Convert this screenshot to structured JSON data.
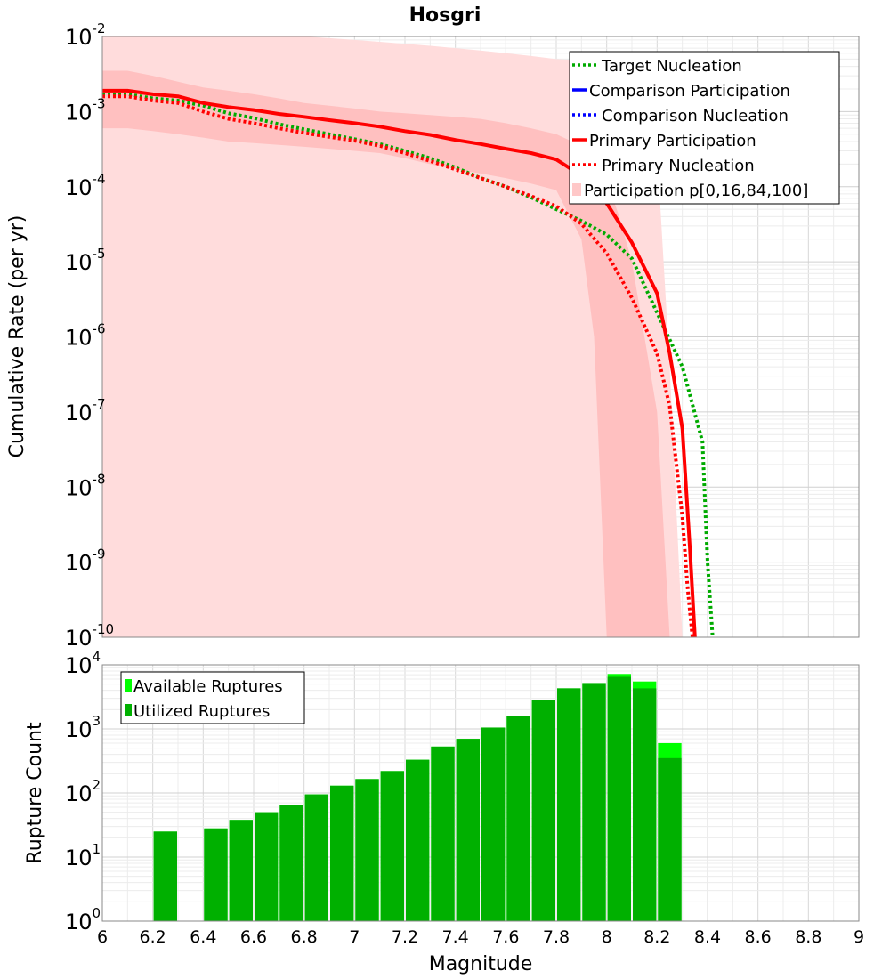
{
  "chart_data": [
    {
      "type": "line",
      "title": "Hosgri",
      "ylabel": "Cumulative Rate (per yr)",
      "xlim": [
        6,
        9
      ],
      "ylim": [
        1e-10,
        0.01
      ],
      "yscale": "log",
      "grid": true,
      "legend_placement": "top-right",
      "y_tick_labels": [
        {
          "base": "10",
          "exp": "-2",
          "value": 0.01
        },
        {
          "base": "10",
          "exp": "-3",
          "value": 0.001
        },
        {
          "base": "10",
          "exp": "-4",
          "value": 0.0001
        },
        {
          "base": "10",
          "exp": "-5",
          "value": 1e-05
        },
        {
          "base": "10",
          "exp": "-6",
          "value": 1e-06
        },
        {
          "base": "10",
          "exp": "-7",
          "value": 1e-07
        },
        {
          "base": "10",
          "exp": "-8",
          "value": 1e-08
        },
        {
          "base": "10",
          "exp": "-9",
          "value": 1e-09
        },
        {
          "base": "10",
          "exp": "-10",
          "value": 1e-10
        }
      ],
      "legend": [
        {
          "label": "Target Nucleation",
          "color": "#00aa00",
          "style": "dotted"
        },
        {
          "label": "Comparison Participation",
          "color": "#0000ff",
          "style": "solid"
        },
        {
          "label": "Comparison Nucleation",
          "color": "#0000ff",
          "style": "dotted"
        },
        {
          "label": "Primary Participation",
          "color": "#ff0000",
          "style": "solid"
        },
        {
          "label": "Primary Nucleation",
          "color": "#ff0000",
          "style": "dotted"
        },
        {
          "label": "Participation p[0,16,84,100]",
          "color": "#ffc8c8",
          "style": "fill"
        }
      ],
      "series": [
        {
          "name": "Primary Participation",
          "color": "#ff0000",
          "dash": false,
          "x": [
            6.0,
            6.1,
            6.2,
            6.3,
            6.4,
            6.5,
            6.6,
            6.7,
            6.8,
            6.9,
            7.0,
            7.1,
            7.2,
            7.3,
            7.4,
            7.5,
            7.6,
            7.7,
            7.8,
            7.9,
            8.0,
            8.1,
            8.2,
            8.25,
            8.3,
            8.33,
            8.35
          ],
          "y": [
            0.0019,
            0.0019,
            0.0017,
            0.0016,
            0.0013,
            0.00115,
            0.00105,
            0.00093,
            0.00085,
            0.00077,
            0.0007,
            0.00063,
            0.00055,
            0.00049,
            0.00042,
            0.00037,
            0.00032,
            0.00028,
            0.00023,
            0.00014,
            6e-05,
            1.8e-05,
            3.8e-06,
            6e-07,
            6e-08,
            1.5e-09,
            1e-10
          ]
        },
        {
          "name": "Primary Nucleation",
          "color": "#ff0000",
          "dash": true,
          "x": [
            6.0,
            6.1,
            6.2,
            6.3,
            6.4,
            6.5,
            6.6,
            6.7,
            6.8,
            6.9,
            7.0,
            7.1,
            7.2,
            7.3,
            7.4,
            7.5,
            7.6,
            7.7,
            7.8,
            7.9,
            8.0,
            8.1,
            8.2,
            8.25,
            8.3,
            8.32,
            8.34
          ],
          "y": [
            0.0016,
            0.0016,
            0.0014,
            0.0013,
            0.001,
            0.0008,
            0.0007,
            0.0006,
            0.00052,
            0.00046,
            0.00041,
            0.00035,
            0.00028,
            0.00022,
            0.00017,
            0.00013,
            0.0001,
            7.5e-05,
            5.5e-05,
            3.2e-05,
            1.3e-05,
            3.3e-06,
            6e-07,
            1.2e-07,
            4e-09,
            5e-10,
            1e-10
          ]
        },
        {
          "name": "Target Nucleation",
          "color": "#00aa00",
          "dash": true,
          "x": [
            6.0,
            6.1,
            6.2,
            6.3,
            6.4,
            6.5,
            6.6,
            6.7,
            6.8,
            6.9,
            7.0,
            7.1,
            7.2,
            7.3,
            7.4,
            7.5,
            7.6,
            7.7,
            7.8,
            7.9,
            8.0,
            8.1,
            8.2,
            8.3,
            8.38,
            8.4,
            8.42
          ],
          "y": [
            0.0017,
            0.0017,
            0.0015,
            0.0014,
            0.0012,
            0.00095,
            0.00082,
            0.00068,
            0.00058,
            0.0005,
            0.00043,
            0.00037,
            0.0003,
            0.00024,
            0.00018,
            0.00013,
            0.0001,
            7.2e-05,
            5e-05,
            3.5e-05,
            2.3e-05,
            1.1e-05,
            2.1e-06,
            4e-07,
            4e-08,
            1e-09,
            1e-10
          ]
        }
      ],
      "bands": [
        {
          "name": "Participation p[0,100]",
          "color": "#ffdcdc",
          "x": [
            6.0,
            6.1,
            6.2,
            6.3,
            6.4,
            6.5,
            6.6,
            6.7,
            6.8,
            6.9,
            7.0,
            7.1,
            7.2,
            7.3,
            7.4,
            7.5,
            7.6,
            7.7,
            7.8,
            7.9,
            8.0,
            8.05,
            8.1,
            8.15,
            8.2,
            8.25,
            8.3
          ],
          "upper": [
            0.01,
            0.01,
            0.01,
            0.01,
            0.01,
            0.01,
            0.01,
            0.01,
            0.01,
            0.0095,
            0.009,
            0.0085,
            0.008,
            0.0075,
            0.007,
            0.0065,
            0.006,
            0.0055,
            0.005,
            0.0048,
            0.0048,
            0.0045,
            0.004,
            0.0025,
            0.0003,
            4e-07,
            1e-10
          ],
          "lower": [
            1e-10,
            1e-10,
            1e-10,
            1e-10,
            1e-10,
            1e-10,
            1e-10,
            1e-10,
            1e-10,
            1e-10,
            1e-10,
            1e-10,
            1e-10,
            1e-10,
            1e-10,
            1e-10,
            1e-10,
            1e-10,
            1e-10,
            1e-10,
            1e-10,
            1e-10,
            1e-10,
            1e-10,
            1e-10,
            1e-10,
            1e-10
          ]
        },
        {
          "name": "Participation p[16,84]",
          "color": "#ffc0c0",
          "x": [
            6.0,
            6.1,
            6.2,
            6.3,
            6.4,
            6.5,
            6.6,
            6.7,
            6.8,
            6.9,
            7.0,
            7.1,
            7.2,
            7.3,
            7.4,
            7.5,
            7.6,
            7.7,
            7.8,
            7.9,
            7.95,
            8.0,
            8.05,
            8.1,
            8.2,
            8.25
          ],
          "upper": [
            0.0035,
            0.0035,
            0.003,
            0.0025,
            0.0021,
            0.0019,
            0.0017,
            0.0015,
            0.0013,
            0.0012,
            0.0011,
            0.001,
            0.00095,
            0.0009,
            0.00085,
            0.0008,
            0.0007,
            0.0006,
            0.0005,
            0.00035,
            0.00025,
            0.00012,
            4e-05,
            1e-05,
            1e-07,
            1e-10
          ],
          "lower": [
            0.0006,
            0.0006,
            0.00055,
            0.0005,
            0.00045,
            0.0004,
            0.00038,
            0.00036,
            0.00034,
            0.00032,
            0.0003,
            0.00028,
            0.00024,
            0.0002,
            0.00017,
            0.00015,
            0.00013,
            0.00011,
            9e-05,
            2e-05,
            1e-06,
            1e-10,
            1e-10,
            1e-10,
            1e-10,
            1e-10
          ]
        }
      ]
    },
    {
      "type": "bar",
      "xlabel": "Magnitude",
      "ylabel": "Rupture Count",
      "xlim": [
        6,
        9
      ],
      "ylim": [
        1,
        10000
      ],
      "yscale": "log",
      "grid": true,
      "legend_placement": "top-left",
      "x_tick_labels": [
        "6",
        "6.2",
        "6.4",
        "6.6",
        "6.8",
        "7",
        "7.2",
        "7.4",
        "7.6",
        "7.8",
        "8",
        "8.2",
        "8.4",
        "8.6",
        "8.8",
        "9"
      ],
      "y_tick_labels": [
        {
          "base": "10",
          "exp": "0",
          "value": 1
        },
        {
          "base": "10",
          "exp": "1",
          "value": 10
        },
        {
          "base": "10",
          "exp": "2",
          "value": 100
        },
        {
          "base": "10",
          "exp": "3",
          "value": 1000
        },
        {
          "base": "10",
          "exp": "4",
          "value": 10000
        }
      ],
      "legend": [
        {
          "label": "Available Ruptures",
          "color": "#00ff00"
        },
        {
          "label": "Utilized Ruptures",
          "color": "#00b000"
        }
      ],
      "bin_width": 0.1,
      "bin_starts": [
        6.2,
        6.4,
        6.5,
        6.6,
        6.7,
        6.8,
        6.9,
        7.0,
        7.1,
        7.2,
        7.3,
        7.4,
        7.5,
        7.6,
        7.7,
        7.8,
        7.9,
        8.0,
        8.1,
        8.2
      ],
      "series": [
        {
          "name": "Available Ruptures",
          "color": "#00ff00",
          "values": [
            25,
            28,
            38,
            50,
            65,
            95,
            130,
            165,
            220,
            330,
            530,
            700,
            1050,
            1600,
            2800,
            4300,
            5200,
            7200,
            5500,
            600
          ]
        },
        {
          "name": "Utilized Ruptures",
          "color": "#00b000",
          "values": [
            25,
            28,
            38,
            50,
            65,
            95,
            130,
            165,
            220,
            330,
            530,
            700,
            1050,
            1600,
            2800,
            4300,
            5200,
            6500,
            4300,
            350
          ]
        }
      ]
    }
  ]
}
